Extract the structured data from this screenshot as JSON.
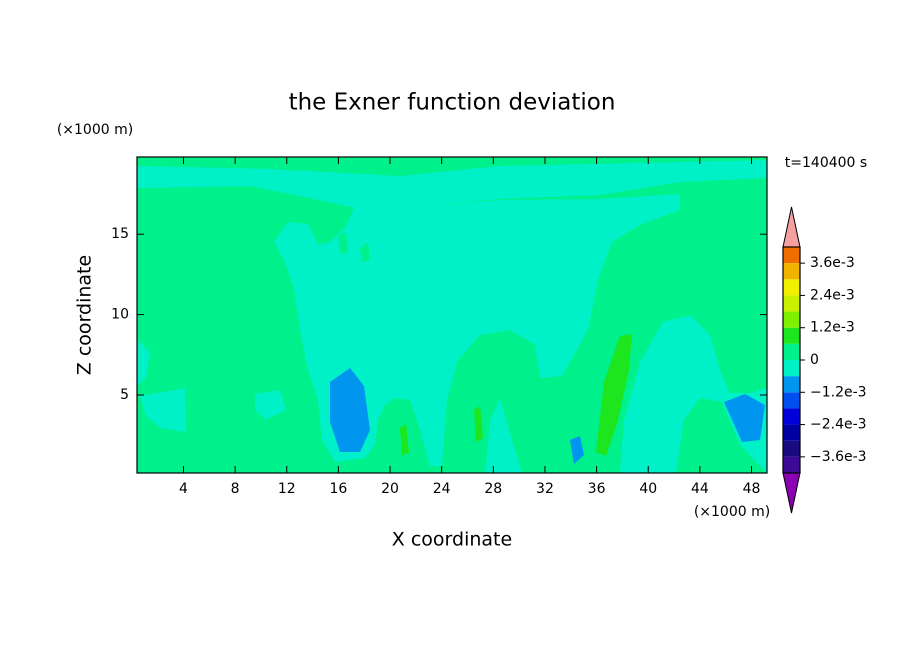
{
  "chart_data": {
    "type": "contour",
    "title": "the Exner function deviation",
    "xlabel": "X coordinate",
    "ylabel": "Z coordinate",
    "x_unit": "(×1000 m)",
    "y_unit": "(×1000 m)",
    "annotation": "t=140400 s",
    "xlim": [
      0.4,
      49.2
    ],
    "ylim": [
      0.15,
      19.8
    ],
    "xticks": [
      4,
      8,
      12,
      16,
      20,
      24,
      28,
      32,
      36,
      40,
      44,
      48
    ],
    "yticks": [
      5,
      10,
      15
    ],
    "levels": [
      -0.0042,
      -0.0036,
      -0.003,
      -0.0024,
      -0.0018,
      -0.0012,
      -0.0006,
      0,
      0.0006,
      0.0012,
      0.0018,
      0.0024,
      0.003,
      0.0036,
      0.0042
    ],
    "colors": [
      "#3c0a96",
      "#1a0a80",
      "#0000a0",
      "#0000d8",
      "#0050f0",
      "#0096f0",
      "#00f0c8",
      "#00f08c",
      "#1ee61e",
      "#80f000",
      "#c8f000",
      "#f0f000",
      "#f0b400",
      "#f06e00"
    ],
    "under_color": "#8c00b4",
    "over_color": "#f4a0a0",
    "colorbar_ticks": [
      {
        "value": 0.0036,
        "label": "3.6e-3"
      },
      {
        "value": 0.0024,
        "label": "2.4e-3"
      },
      {
        "value": 0.0012,
        "label": "1.2e-3"
      },
      0,
      {
        "value": -0.0012,
        "label": "−1.2e-3"
      },
      {
        "value": -0.0024,
        "label": "−2.4e-3"
      },
      {
        "value": -0.0036,
        "label": "−3.6e-3"
      }
    ]
  }
}
